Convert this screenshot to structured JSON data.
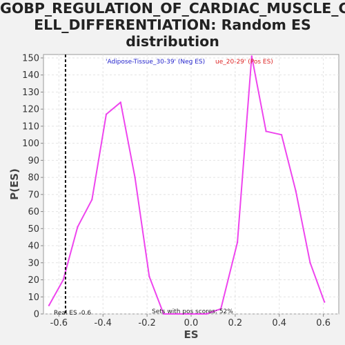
{
  "title_lines": [
    "GOBP_REGULATION_OF_CARDIAC_MUSCLE_C",
    "ELL_DIFFERENTIATION: Random ES",
    "distribution"
  ],
  "chart_data": {
    "type": "line",
    "title": "GOBP_REGULATION_OF_CARDIAC_MUSCLE_CELL_DIFFERENTIATION: Random ES distribution",
    "xlabel": "ES",
    "ylabel": "P(ES)",
    "xlim": [
      -0.67,
      0.67
    ],
    "ylim": [
      0,
      152
    ],
    "x_ticks": [
      -0.6,
      -0.4,
      -0.2,
      0.0,
      0.2,
      0.4,
      0.6
    ],
    "x_tick_labels": [
      "-0.6",
      "-0.4",
      "-0.2",
      "0.0",
      "0.2",
      "0.4",
      "0.6"
    ],
    "y_ticks": [
      0,
      10,
      20,
      30,
      40,
      50,
      60,
      70,
      80,
      90,
      100,
      110,
      120,
      130,
      140,
      150
    ],
    "grid": true,
    "series": [
      {
        "color": "#ee44ee",
        "x": [
          -0.645,
          -0.58,
          -0.515,
          -0.45,
          -0.385,
          -0.32,
          -0.255,
          -0.19,
          -0.125,
          -0.06,
          0.005,
          0.07,
          0.135,
          0.21,
          0.275,
          0.34,
          0.41,
          0.475,
          0.54,
          0.605
        ],
        "y": [
          5,
          20,
          51,
          67,
          117,
          124,
          80,
          22,
          0,
          0,
          0,
          0,
          3,
          42,
          151,
          107,
          105,
          72,
          30,
          7
        ]
      }
    ],
    "real_es": {
      "value": -0.57,
      "label": "Real ES -0.6"
    },
    "pos_note": "Sets with pos scores: 52%",
    "legend": [
      {
        "text": "'Adipose-Tissue_30-39' (Neg ES)",
        "color": "#2222cc"
      },
      {
        "text": "ue_20-29' (Pos ES)",
        "color": "#dd2222"
      }
    ]
  }
}
